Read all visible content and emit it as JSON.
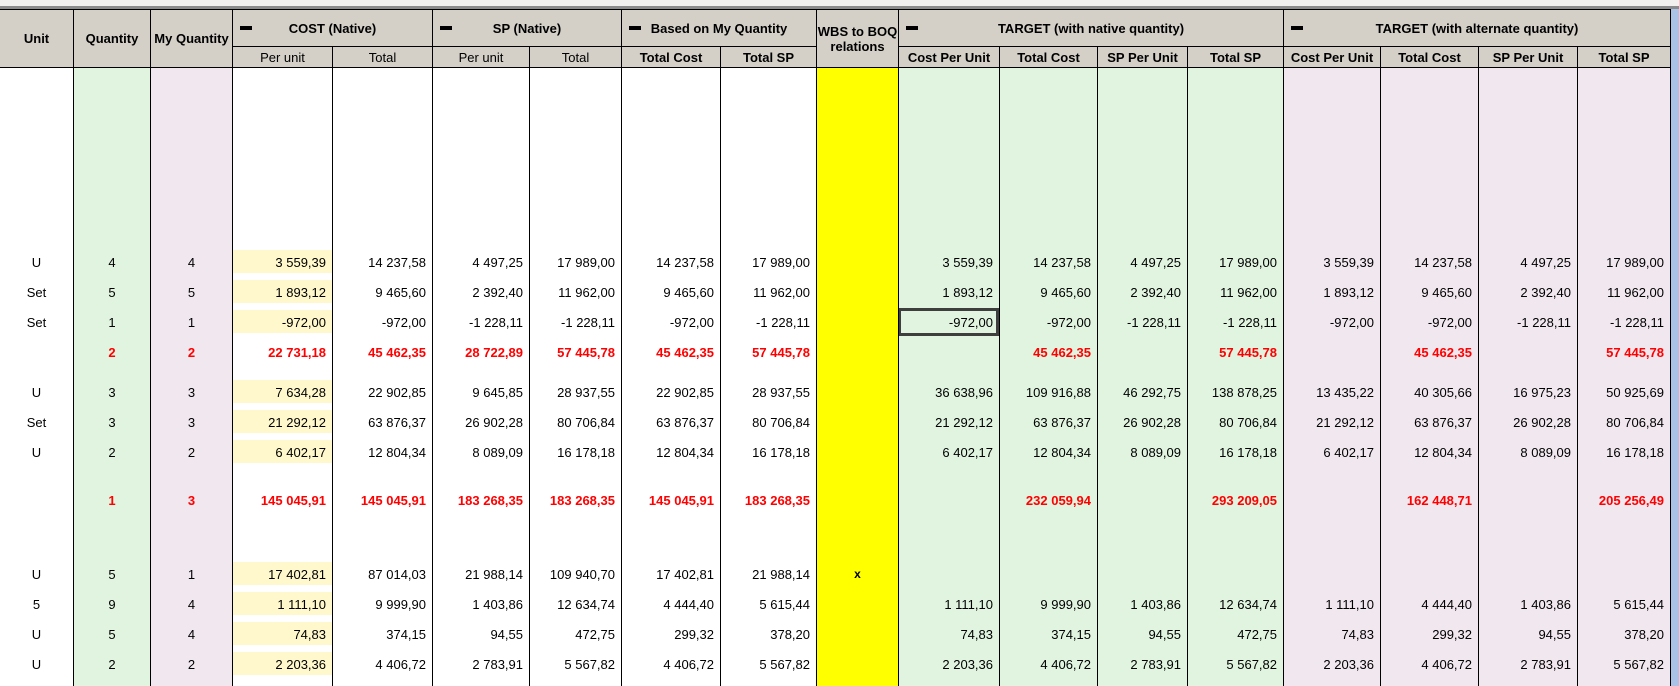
{
  "header": {
    "unit": "Unit",
    "quantity": "Quantity",
    "my_quantity": "My Quantity",
    "wbs": "WBS to BOQ relations",
    "cost": {
      "label": "COST (Native)",
      "collapse_icon": "minus-icon",
      "sub": [
        "Per unit",
        "Total"
      ]
    },
    "sp": {
      "label": "SP (Native)",
      "collapse_icon": "minus-icon",
      "sub": [
        "Per unit",
        "Total"
      ]
    },
    "bmq": {
      "label": "Based on My Quantity",
      "collapse_icon": "minus-icon",
      "sub": [
        "Total Cost",
        "Total SP"
      ]
    },
    "target_native": {
      "label": "TARGET (with native quantity)",
      "collapse_icon": "minus-icon",
      "sub": [
        "Cost Per Unit",
        "Total Cost",
        "SP Per Unit",
        "Total SP"
      ]
    },
    "target_alt": {
      "label": "TARGET (with alternate quantity)",
      "collapse_icon": "minus-icon",
      "sub": [
        "Cost Per Unit",
        "Total Cost",
        "SP Per Unit",
        "Total SP"
      ]
    }
  },
  "selected_cell": {
    "row": 2,
    "col": "n_cpu"
  },
  "rows": [
    {
      "red": false,
      "unit": "U",
      "qty": "4",
      "myq": "4",
      "cost_pu": "3 559,39",
      "cost_t": "14 237,58",
      "sp_pu": "4 497,25",
      "sp_t": "17 989,00",
      "bmq_tc": "14 237,58",
      "bmq_tsp": "17 989,00",
      "wbs": "",
      "n_cpu": "3 559,39",
      "n_tc": "14 237,58",
      "n_spu": "4 497,25",
      "n_tsp": "17 989,00",
      "a_cpu": "3 559,39",
      "a_tc": "14 237,58",
      "a_spu": "4 497,25",
      "a_tsp": "17 989,00"
    },
    {
      "red": false,
      "unit": "Set",
      "qty": "5",
      "myq": "5",
      "cost_pu": "1 893,12",
      "cost_t": "9 465,60",
      "sp_pu": "2 392,40",
      "sp_t": "11 962,00",
      "bmq_tc": "9 465,60",
      "bmq_tsp": "11 962,00",
      "wbs": "",
      "n_cpu": "1 893,12",
      "n_tc": "9 465,60",
      "n_spu": "2 392,40",
      "n_tsp": "11 962,00",
      "a_cpu": "1 893,12",
      "a_tc": "9 465,60",
      "a_spu": "2 392,40",
      "a_tsp": "11 962,00"
    },
    {
      "red": false,
      "unit": "Set",
      "qty": "1",
      "myq": "1",
      "cost_pu": "-972,00",
      "cost_t": "-972,00",
      "sp_pu": "-1 228,11",
      "sp_t": "-1 228,11",
      "bmq_tc": "-972,00",
      "bmq_tsp": "-1 228,11",
      "wbs": "",
      "n_cpu": "-972,00",
      "n_tc": "-972,00",
      "n_spu": "-1 228,11",
      "n_tsp": "-1 228,11",
      "a_cpu": "-972,00",
      "a_tc": "-972,00",
      "a_spu": "-1 228,11",
      "a_tsp": "-1 228,11"
    },
    {
      "red": true,
      "unit": "",
      "qty": "2",
      "myq": "2",
      "cost_pu": "22 731,18",
      "cost_t": "45 462,35",
      "sp_pu": "28 722,89",
      "sp_t": "57 445,78",
      "bmq_tc": "45 462,35",
      "bmq_tsp": "57 445,78",
      "wbs": "",
      "n_cpu": "",
      "n_tc": "45 462,35",
      "n_spu": "",
      "n_tsp": "57 445,78",
      "a_cpu": "",
      "a_tc": "45 462,35",
      "a_spu": "",
      "a_tsp": "57 445,78"
    },
    {
      "red": false,
      "unit": "U",
      "qty": "3",
      "myq": "3",
      "cost_pu": "7 634,28",
      "cost_t": "22 902,85",
      "sp_pu": "9 645,85",
      "sp_t": "28 937,55",
      "bmq_tc": "22 902,85",
      "bmq_tsp": "28 937,55",
      "wbs": "",
      "n_cpu": "36 638,96",
      "n_tc": "109 916,88",
      "n_spu": "46 292,75",
      "n_tsp": "138 878,25",
      "a_cpu": "13 435,22",
      "a_tc": "40 305,66",
      "a_spu": "16 975,23",
      "a_tsp": "50 925,69"
    },
    {
      "red": false,
      "unit": "Set",
      "qty": "3",
      "myq": "3",
      "cost_pu": "21 292,12",
      "cost_t": "63 876,37",
      "sp_pu": "26 902,28",
      "sp_t": "80 706,84",
      "bmq_tc": "63 876,37",
      "bmq_tsp": "80 706,84",
      "wbs": "",
      "n_cpu": "21 292,12",
      "n_tc": "63 876,37",
      "n_spu": "26 902,28",
      "n_tsp": "80 706,84",
      "a_cpu": "21 292,12",
      "a_tc": "63 876,37",
      "a_spu": "26 902,28",
      "a_tsp": "80 706,84"
    },
    {
      "red": false,
      "unit": "U",
      "qty": "2",
      "myq": "2",
      "cost_pu": "6 402,17",
      "cost_t": "12 804,34",
      "sp_pu": "8 089,09",
      "sp_t": "16 178,18",
      "bmq_tc": "12 804,34",
      "bmq_tsp": "16 178,18",
      "wbs": "",
      "n_cpu": "6 402,17",
      "n_tc": "12 804,34",
      "n_spu": "8 089,09",
      "n_tsp": "16 178,18",
      "a_cpu": "6 402,17",
      "a_tc": "12 804,34",
      "a_spu": "8 089,09",
      "a_tsp": "16 178,18"
    },
    {
      "red": true,
      "unit": "",
      "qty": "1",
      "myq": "3",
      "cost_pu": "145 045,91",
      "cost_t": "145 045,91",
      "sp_pu": "183 268,35",
      "sp_t": "183 268,35",
      "bmq_tc": "145 045,91",
      "bmq_tsp": "183 268,35",
      "wbs": "",
      "n_cpu": "",
      "n_tc": "232 059,94",
      "n_spu": "",
      "n_tsp": "293 209,05",
      "a_cpu": "",
      "a_tc": "162 448,71",
      "a_spu": "",
      "a_tsp": "205 256,49"
    },
    {
      "red": false,
      "unit": "U",
      "qty": "5",
      "myq": "1",
      "cost_pu": "17 402,81",
      "cost_t": "87 014,03",
      "sp_pu": "21 988,14",
      "sp_t": "109 940,70",
      "bmq_tc": "17 402,81",
      "bmq_tsp": "21 988,14",
      "wbs": "x",
      "n_cpu": "",
      "n_tc": "",
      "n_spu": "",
      "n_tsp": "",
      "a_cpu": "",
      "a_tc": "",
      "a_spu": "",
      "a_tsp": ""
    },
    {
      "red": false,
      "unit": "5",
      "qty": "9",
      "myq": "4",
      "cost_pu": "1 111,10",
      "cost_t": "9 999,90",
      "sp_pu": "1 403,86",
      "sp_t": "12 634,74",
      "bmq_tc": "4 444,40",
      "bmq_tsp": "5 615,44",
      "wbs": "",
      "n_cpu": "1 111,10",
      "n_tc": "9 999,90",
      "n_spu": "1 403,86",
      "n_tsp": "12 634,74",
      "a_cpu": "1 111,10",
      "a_tc": "4 444,40",
      "a_spu": "1 403,86",
      "a_tsp": "5 615,44"
    },
    {
      "red": false,
      "unit": "U",
      "qty": "5",
      "myq": "4",
      "cost_pu": "74,83",
      "cost_t": "374,15",
      "sp_pu": "94,55",
      "sp_t": "472,75",
      "bmq_tc": "299,32",
      "bmq_tsp": "378,20",
      "wbs": "",
      "n_cpu": "74,83",
      "n_tc": "374,15",
      "n_spu": "94,55",
      "n_tsp": "472,75",
      "a_cpu": "74,83",
      "a_tc": "299,32",
      "a_spu": "94,55",
      "a_tsp": "378,20"
    },
    {
      "red": false,
      "unit": "U",
      "qty": "2",
      "myq": "2",
      "cost_pu": "2 203,36",
      "cost_t": "4 406,72",
      "sp_pu": "2 783,91",
      "sp_t": "5 567,82",
      "bmq_tc": "4 406,72",
      "bmq_tsp": "5 567,82",
      "wbs": "",
      "n_cpu": "2 203,36",
      "n_tc": "4 406,72",
      "n_spu": "2 783,91",
      "n_tsp": "5 567,82",
      "a_cpu": "2 203,36",
      "a_tc": "4 406,72",
      "a_spu": "2 783,91",
      "a_tsp": "5 567,82"
    }
  ],
  "colors": {
    "header_bg": "#d4d0c8",
    "green_columns_bg": "#e0f4e0",
    "lavender_columns_bg": "#f0e7ef",
    "wbs_column_bg": "#ffff00",
    "cost_per_unit_highlight": "#fff8cc",
    "total_row_text": "#ff0000",
    "scrollbar": "#a9c2e5"
  }
}
